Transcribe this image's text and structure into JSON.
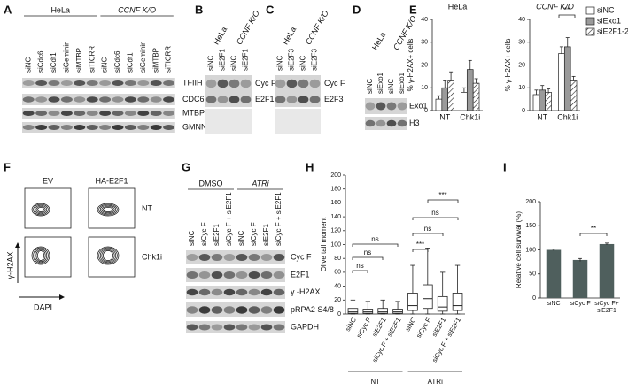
{
  "panel_labels": [
    "A",
    "B",
    "C",
    "D",
    "E",
    "F",
    "G",
    "H",
    "I"
  ],
  "panels": {
    "A": {
      "groups": [
        "HeLa",
        "CCNF K/O"
      ],
      "lanes": [
        "siNC",
        "siCdc6",
        "siCdt1",
        "siGeminin",
        "siMTBP",
        "siTICRR",
        "siNC",
        "siCdc6",
        "siCdt1",
        "siGeminin",
        "siMTBP",
        "siTICRR"
      ],
      "rows": [
        "TFIIH",
        "CDC6",
        "MTBP",
        "GMNN"
      ]
    },
    "B": {
      "groups": [
        "HeLa",
        "CCNF K/O"
      ],
      "lanes": [
        "siNC",
        "siE2F1",
        "siNC",
        "siE2F1"
      ],
      "rows": [
        "Cyc F",
        "E2F1"
      ]
    },
    "C": {
      "groups": [
        "HeLa",
        "CCNF K/O"
      ],
      "lanes": [
        "siNC",
        "siE2F3",
        "siNC",
        "siE2F3"
      ],
      "rows": [
        "Cyc F",
        "E2F3"
      ]
    },
    "D": {
      "groups": [
        "HeLa",
        "CCNF K/O"
      ],
      "lanes": [
        "siNC",
        "siExo1",
        "siNC",
        "siExo1"
      ],
      "rows": [
        "Exo1",
        "H3"
      ]
    },
    "F": {
      "columns": [
        "EV",
        "HA-E2F1"
      ],
      "rows": [
        "NT",
        "Chk1i"
      ],
      "ylabel": "γ-H2AX",
      "xlabel": "DAPI"
    },
    "G": {
      "groups": [
        "DMSO",
        "ATRi"
      ],
      "lanes": [
        "siNC",
        "siCyc F",
        "siE2F1",
        "siCyc F + siE2F1",
        "siNC",
        "siCyc F",
        "siE2F1",
        "siCyc F + siE2F1"
      ],
      "rows": [
        "Cyc F",
        "E2F1",
        "γ -H2AX",
        "pRPA2 S4/8",
        "GAPDH"
      ]
    }
  },
  "chart_data": [
    {
      "type": "bar",
      "title": "HeLa",
      "ylabel": "% γ-H2AX+ cells",
      "categories": [
        "NT",
        "Chk1i"
      ],
      "series": [
        {
          "name": "siNC",
          "color": "#ffffff",
          "values": [
            5,
            8
          ],
          "errors": [
            1.5,
            2
          ]
        },
        {
          "name": "siExo1",
          "color": "#9a9a9a",
          "values": [
            10,
            18
          ],
          "errors": [
            3,
            4
          ]
        },
        {
          "name": "siE2F1-2",
          "color": "#ffffff",
          "hatch": true,
          "values": [
            13,
            12
          ],
          "errors": [
            4,
            2
          ]
        }
      ],
      "ylim": [
        0,
        40
      ],
      "yticks": [
        0,
        10,
        20,
        30,
        40
      ],
      "legend": false
    },
    {
      "type": "bar",
      "title": "CCNF K/O",
      "ylabel": "% γ-H2AX+ cells",
      "categories": [
        "NT",
        "Chk1i"
      ],
      "series": [
        {
          "name": "siNC",
          "color": "#ffffff",
          "values": [
            7,
            25
          ],
          "errors": [
            2,
            3
          ]
        },
        {
          "name": "siExo1",
          "color": "#9a9a9a",
          "values": [
            9,
            28
          ],
          "errors": [
            2,
            4
          ]
        },
        {
          "name": "siE2F1-2",
          "color": "#ffffff",
          "hatch": true,
          "values": [
            8,
            13
          ],
          "errors": [
            1.5,
            2
          ]
        }
      ],
      "ylim": [
        0,
        40
      ],
      "yticks": [
        0,
        10,
        20,
        30,
        40
      ],
      "legend": "right",
      "annotations": [
        "**"
      ]
    },
    {
      "type": "box",
      "ylabel": "Olive tail moment",
      "categories": [
        "siNC",
        "siCyc F",
        "siE2F1",
        "siCyc F + siE2F1",
        "siNC",
        "siCyc F",
        "siE2F1",
        "siCyc F + siE2F1"
      ],
      "groups": [
        "NT",
        "ATRi"
      ],
      "color": "#ffffff",
      "boxes": [
        {
          "whisker_low": 0,
          "q1": 1,
          "median": 3,
          "q3": 8,
          "whisker_high": 20
        },
        {
          "whisker_low": 0,
          "q1": 1,
          "median": 3,
          "q3": 7,
          "whisker_high": 18
        },
        {
          "whisker_low": 0,
          "q1": 1,
          "median": 3,
          "q3": 8,
          "whisker_high": 20
        },
        {
          "whisker_low": 0,
          "q1": 1,
          "median": 3,
          "q3": 7,
          "whisker_high": 18
        },
        {
          "whisker_low": 0,
          "q1": 5,
          "median": 12,
          "q3": 30,
          "whisker_high": 70
        },
        {
          "whisker_low": 0,
          "q1": 8,
          "median": 22,
          "q3": 42,
          "whisker_high": 95
        },
        {
          "whisker_low": 0,
          "q1": 4,
          "median": 10,
          "q3": 25,
          "whisker_high": 60
        },
        {
          "whisker_low": 0,
          "q1": 5,
          "median": 12,
          "q3": 30,
          "whisker_high": 70
        }
      ],
      "ylim": [
        0,
        200
      ],
      "yticks": [
        0,
        20,
        40,
        60,
        80,
        100,
        120,
        140,
        160,
        180,
        200
      ],
      "annotations": [
        "ns",
        "ns",
        "ns",
        "***",
        "ns",
        "ns",
        "***"
      ]
    },
    {
      "type": "bar",
      "ylabel": "Relative cell survival (%)",
      "categories": [
        "siNC",
        "siCyc F",
        "siCyc F+ siE2F1"
      ],
      "values": [
        100,
        79,
        112
      ],
      "errors": [
        1.5,
        3,
        2
      ],
      "color": "#4f5f5d",
      "ylim": [
        0,
        200
      ],
      "yticks": [
        0,
        50,
        100,
        150,
        200
      ],
      "annotations": [
        "**"
      ]
    }
  ]
}
